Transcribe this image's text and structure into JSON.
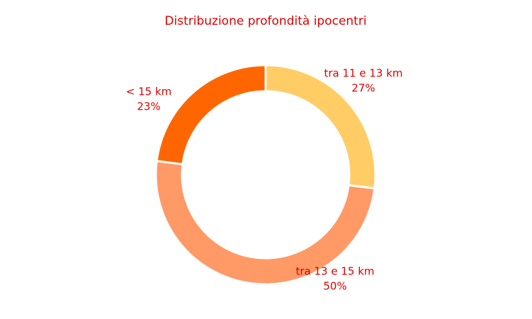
{
  "chart_data": {
    "type": "donut",
    "title": "Distribuzione profondità ipocentri",
    "categories": [
      "tra 11 e 13 km",
      "tra 13 e 15 km",
      "< 15 km"
    ],
    "values": [
      27,
      50,
      23
    ],
    "value_labels": [
      "27%",
      "50%",
      "23%"
    ],
    "colors": [
      "#ffcc66",
      "#ff9966",
      "#ff6600"
    ]
  }
}
